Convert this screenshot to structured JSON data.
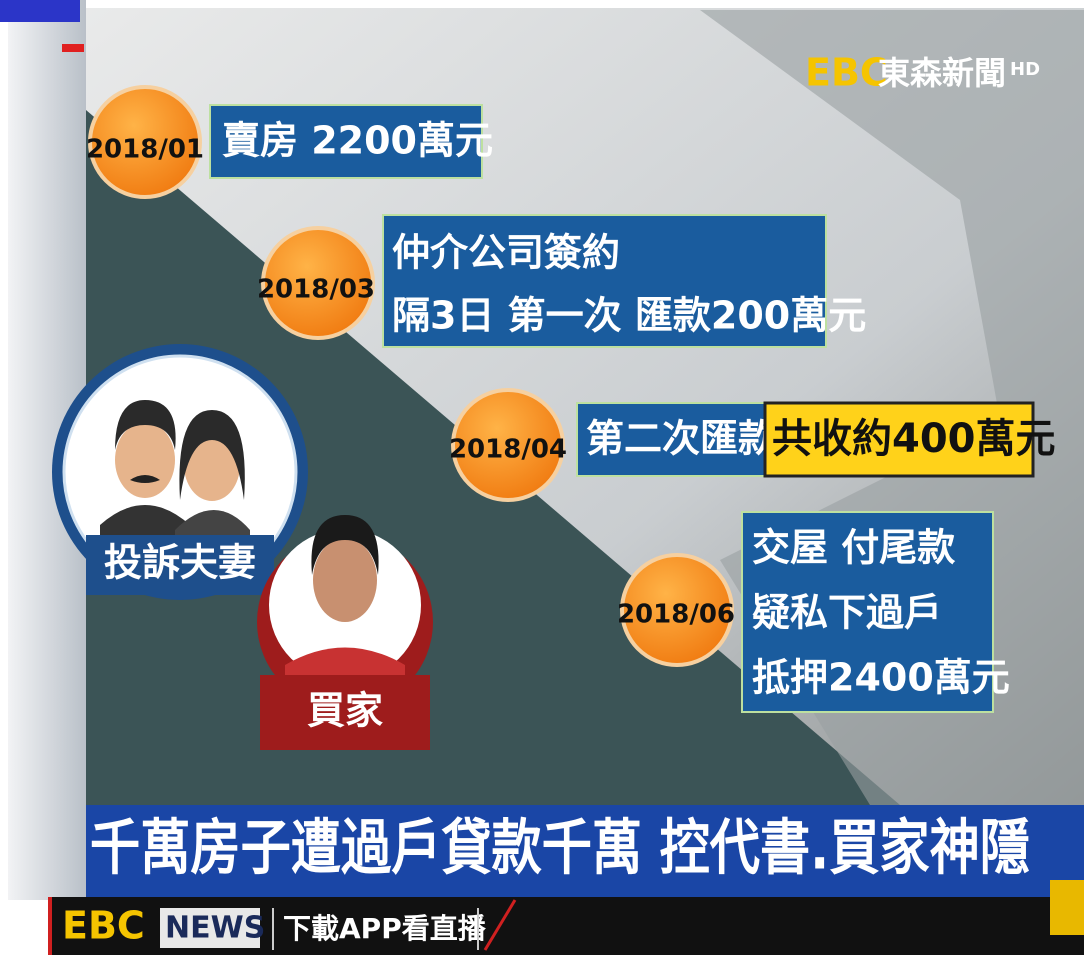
{
  "logo": {
    "brand": "EBC",
    "name": "東森新聞",
    "badge": "HD"
  },
  "timeline": [
    {
      "date": "2018/01",
      "lines": [
        "賣房 2200萬元"
      ]
    },
    {
      "date": "2018/03",
      "lines": [
        "仲介公司簽約",
        "隔3日 第一次 匯款200萬元"
      ]
    },
    {
      "date": "2018/04",
      "lines": [
        "第二次匯款"
      ],
      "highlight": "共收約400萬元"
    },
    {
      "date": "2018/06",
      "lines": [
        "交屋 付尾款",
        "疑私下過戶",
        "抵押2400萬元"
      ]
    }
  ],
  "people": [
    {
      "label": "投訴夫妻"
    },
    {
      "label": "買家"
    }
  ],
  "headline": "千萬房子遭過戶貸款千萬 控代書.買家神隱",
  "ticker": {
    "brand": "EBC",
    "news": "NEWS",
    "text": "下載APP看直播"
  }
}
